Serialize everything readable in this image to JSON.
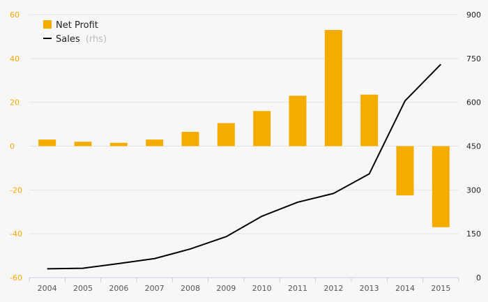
{
  "chart_data": {
    "type": "bar+line",
    "categories": [
      "2004",
      "2005",
      "2006",
      "2007",
      "2008",
      "2009",
      "2010",
      "2011",
      "2012",
      "2013",
      "2014",
      "2015"
    ],
    "series": [
      {
        "name": "Net Profit",
        "type": "bar",
        "axis": "left",
        "color": "#f5ac00",
        "values": [
          3,
          2,
          1.5,
          3,
          6.5,
          10.5,
          16,
          23,
          53,
          23.5,
          -22.5,
          -37
        ]
      },
      {
        "name": "Sales",
        "type": "line",
        "axis": "right",
        "color": "#000000",
        "values": [
          30,
          32,
          48,
          65,
          98,
          140,
          210,
          258,
          288,
          355,
          605,
          730
        ]
      }
    ],
    "legend": {
      "position": "top-left",
      "items": [
        {
          "label": "Net Profit",
          "note": ""
        },
        {
          "label": "Sales",
          "note": "(rhs)"
        }
      ]
    },
    "y_left": {
      "min": -60,
      "max": 60,
      "ticks": [
        "60",
        "40",
        "20",
        "0",
        "-20",
        "-40",
        "-60"
      ],
      "color": "#f5a800"
    },
    "y_right": {
      "min": 0,
      "max": 900,
      "ticks": [
        "900",
        "750",
        "600",
        "450",
        "300",
        "150",
        "0"
      ],
      "color": "#222222"
    },
    "grid": true
  }
}
